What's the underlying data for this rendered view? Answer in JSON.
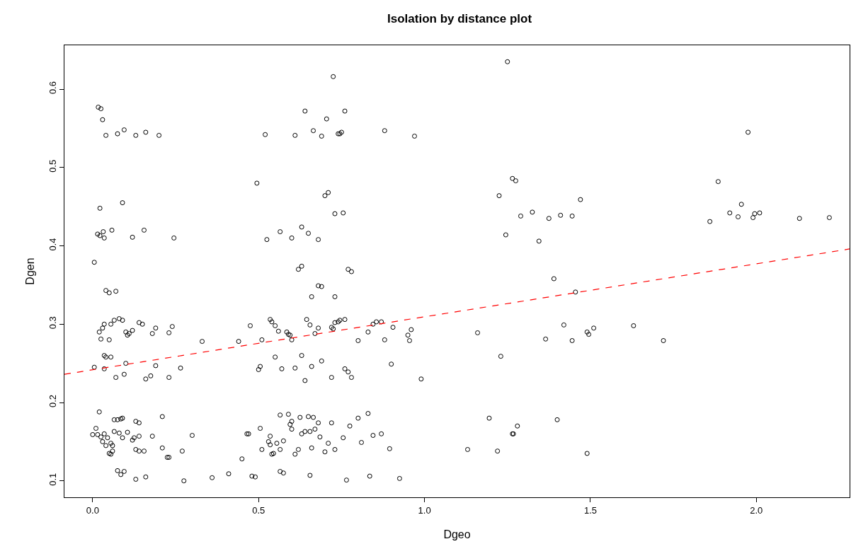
{
  "chart_data": {
    "type": "scatter",
    "title": "Isolation by distance plot",
    "xlabel": "Dgeo",
    "ylabel": "Dgen",
    "marker": "circle",
    "grid": false,
    "xlim": [
      -0.085,
      2.281
    ],
    "xticks": [
      {
        "value": 0,
        "label": "0.0"
      },
      {
        "value": 0.5,
        "label": "0.5"
      },
      {
        "value": 1,
        "label": "1.0"
      },
      {
        "value": 1.5,
        "label": "1.5"
      },
      {
        "value": 2,
        "label": "2.0"
      }
    ],
    "ylim": [
      0.079,
      0.656
    ],
    "yticks": [
      0.1,
      0.2,
      0.3,
      0.4,
      0.5,
      0.6
    ],
    "series": [
      {
        "type": "scatter",
        "color": "#000000",
        "x": [
          0.017,
          0.025,
          0.03,
          0.04,
          0.075,
          0.095,
          0.13,
          0.16,
          0.2,
          0.005,
          0.015,
          0.022,
          0.022,
          0.032,
          0.035,
          0.058,
          0.09,
          0.12,
          0.155,
          0.245,
          0.04,
          0.05,
          0.07,
          0.02,
          0.03,
          0.035,
          0.055,
          0.065,
          0.08,
          0.09,
          0.1,
          0.105,
          0.11,
          0.12,
          0.14,
          0.15,
          0.18,
          0.19,
          0.23,
          0.24,
          0.025,
          0.05,
          0.005,
          0.035,
          0.035,
          0.04,
          0.055,
          0.1,
          0.07,
          0.095,
          0.16,
          0.175,
          0.19,
          0.23,
          0.265,
          0.33,
          0.44,
          0.02,
          0.065,
          0.075,
          0.085,
          0.09,
          0.13,
          0.14,
          0.21,
          0.01,
          0.0,
          0.015,
          0.025,
          0.035,
          0.03,
          0.045,
          0.04,
          0.055,
          0.06,
          0.065,
          0.08,
          0.09,
          0.105,
          0.12,
          0.125,
          0.14,
          0.18,
          0.05,
          0.055,
          0.06,
          0.13,
          0.14,
          0.155,
          0.21,
          0.225,
          0.23,
          0.27,
          0.3,
          0.075,
          0.085,
          0.095,
          0.13,
          0.16,
          0.275,
          0.36,
          0.41,
          0.45,
          0.47,
          0.725,
          0.64,
          0.705,
          0.76,
          0.52,
          0.61,
          0.665,
          0.69,
          0.74,
          0.745,
          0.75,
          0.88,
          0.97,
          0.495,
          0.7,
          0.71,
          0.73,
          0.755,
          0.565,
          0.6,
          0.63,
          0.65,
          0.525,
          0.68,
          0.62,
          0.63,
          0.77,
          0.78,
          0.68,
          0.69,
          0.66,
          0.73,
          0.475,
          0.535,
          0.54,
          0.55,
          0.56,
          0.585,
          0.59,
          0.6,
          0.595,
          0.645,
          0.655,
          0.67,
          0.68,
          0.72,
          0.725,
          0.73,
          0.74,
          0.745,
          0.76,
          0.845,
          0.855,
          0.87,
          0.83,
          0.88,
          0.905,
          0.95,
          0.955,
          0.96,
          0.8,
          0.51,
          0.5,
          0.505,
          0.55,
          0.57,
          0.61,
          0.63,
          0.64,
          0.66,
          0.69,
          0.72,
          0.76,
          0.77,
          0.78,
          0.9,
          0.99,
          0.465,
          0.505,
          0.51,
          0.53,
          0.535,
          0.54,
          0.545,
          0.535,
          0.555,
          0.565,
          0.565,
          0.575,
          0.59,
          0.595,
          0.6,
          0.6,
          0.61,
          0.62,
          0.625,
          0.63,
          0.64,
          0.65,
          0.655,
          0.665,
          0.67,
          0.68,
          0.685,
          0.7,
          0.71,
          0.72,
          0.73,
          0.755,
          0.775,
          0.8,
          0.81,
          0.83,
          0.845,
          0.87,
          0.895,
          0.66,
          0.48,
          0.49,
          0.565,
          0.575,
          0.655,
          0.765,
          0.835,
          0.925,
          1.25,
          1.265,
          1.275,
          1.225,
          1.245,
          1.29,
          1.325,
          1.345,
          1.375,
          1.41,
          1.445,
          1.47,
          1.39,
          1.455,
          1.365,
          1.42,
          1.445,
          1.49,
          1.495,
          1.51,
          1.63,
          1.72,
          1.16,
          1.23,
          1.13,
          1.195,
          1.22,
          1.265,
          1.268,
          1.28,
          1.4,
          1.49,
          1.975,
          1.885,
          1.955,
          1.92,
          1.945,
          1.99,
          1.995,
          2.01,
          1.86,
          2.13,
          2.22
        ],
        "values": [
          0.577,
          0.575,
          0.561,
          0.541,
          0.543,
          0.548,
          0.541,
          0.545,
          0.541,
          0.379,
          0.415,
          0.413,
          0.448,
          0.418,
          0.41,
          0.42,
          0.455,
          0.411,
          0.42,
          0.41,
          0.343,
          0.34,
          0.342,
          0.29,
          0.295,
          0.3,
          0.3,
          0.305,
          0.307,
          0.305,
          0.29,
          0.286,
          0.288,
          0.292,
          0.302,
          0.3,
          0.288,
          0.295,
          0.289,
          0.297,
          0.281,
          0.28,
          0.245,
          0.243,
          0.26,
          0.258,
          0.258,
          0.25,
          0.232,
          0.236,
          0.23,
          0.234,
          0.247,
          0.232,
          0.244,
          0.278,
          0.278,
          0.188,
          0.178,
          0.178,
          0.179,
          0.18,
          0.176,
          0.174,
          0.182,
          0.167,
          0.159,
          0.159,
          0.156,
          0.16,
          0.15,
          0.155,
          0.145,
          0.148,
          0.145,
          0.163,
          0.161,
          0.155,
          0.162,
          0.152,
          0.155,
          0.157,
          0.157,
          0.135,
          0.134,
          0.138,
          0.14,
          0.138,
          0.138,
          0.142,
          0.13,
          0.13,
          0.138,
          0.158,
          0.113,
          0.108,
          0.112,
          0.102,
          0.105,
          0.1,
          0.104,
          0.109,
          0.128,
          0.16,
          0.616,
          0.572,
          0.562,
          0.572,
          0.542,
          0.541,
          0.547,
          0.54,
          0.543,
          0.543,
          0.545,
          0.547,
          0.54,
          0.48,
          0.464,
          0.468,
          0.441,
          0.442,
          0.418,
          0.41,
          0.424,
          0.416,
          0.408,
          0.408,
          0.37,
          0.374,
          0.37,
          0.367,
          0.349,
          0.348,
          0.335,
          0.335,
          0.298,
          0.306,
          0.303,
          0.298,
          0.291,
          0.29,
          0.287,
          0.28,
          0.286,
          0.306,
          0.299,
          0.288,
          0.295,
          0.296,
          0.294,
          0.302,
          0.303,
          0.305,
          0.306,
          0.3,
          0.303,
          0.303,
          0.29,
          0.28,
          0.296,
          0.286,
          0.279,
          0.293,
          0.279,
          0.28,
          0.242,
          0.246,
          0.258,
          0.243,
          0.244,
          0.26,
          0.228,
          0.246,
          0.253,
          0.232,
          0.243,
          0.239,
          0.232,
          0.249,
          0.23,
          0.16,
          0.167,
          0.14,
          0.15,
          0.146,
          0.134,
          0.135,
          0.157,
          0.148,
          0.14,
          0.184,
          0.151,
          0.185,
          0.172,
          0.166,
          0.176,
          0.134,
          0.14,
          0.181,
          0.16,
          0.163,
          0.182,
          0.163,
          0.181,
          0.166,
          0.174,
          0.156,
          0.137,
          0.148,
          0.174,
          0.14,
          0.155,
          0.17,
          0.18,
          0.149,
          0.186,
          0.158,
          0.16,
          0.141,
          0.142,
          0.106,
          0.105,
          0.112,
          0.11,
          0.107,
          0.101,
          0.106,
          0.103,
          0.635,
          0.486,
          0.483,
          0.464,
          0.414,
          0.438,
          0.443,
          0.406,
          0.435,
          0.439,
          0.438,
          0.459,
          0.358,
          0.341,
          0.281,
          0.299,
          0.279,
          0.29,
          0.287,
          0.295,
          0.298,
          0.279,
          0.289,
          0.259,
          0.14,
          0.18,
          0.138,
          0.16,
          0.16,
          0.17,
          0.178,
          0.135,
          0.545,
          0.482,
          0.453,
          0.442,
          0.437,
          0.436,
          0.441,
          0.442,
          0.431,
          0.435,
          0.436
        ]
      },
      {
        "type": "line",
        "color": "#ff0000",
        "line_style": "dashed",
        "marker": "none",
        "x": [
          -0.085,
          2.281
        ],
        "values": [
          0.236,
          0.396
        ]
      }
    ]
  }
}
